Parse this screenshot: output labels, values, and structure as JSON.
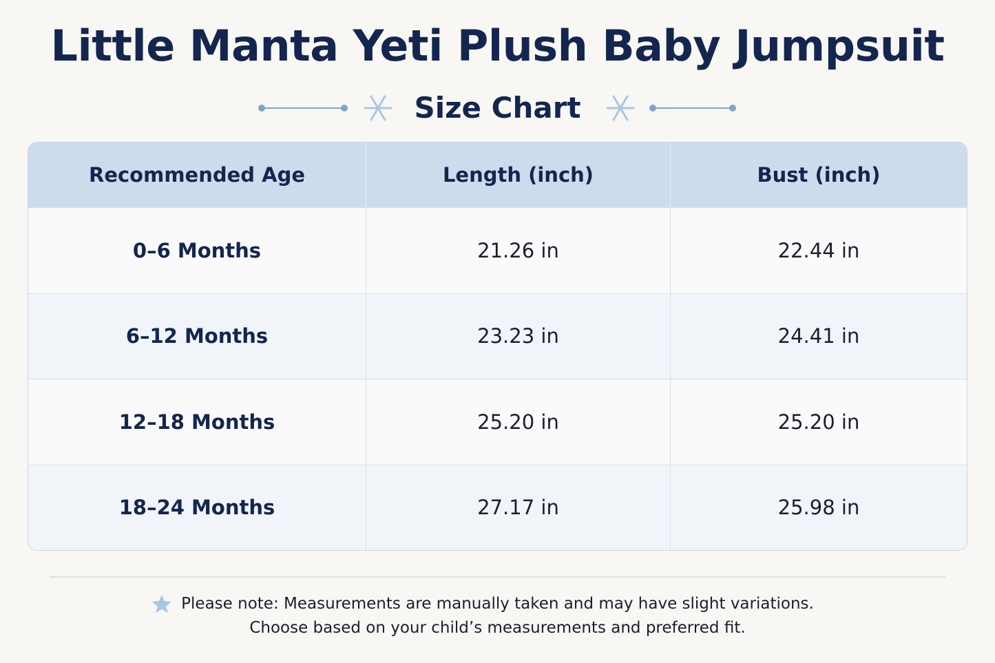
{
  "header": {
    "title": "Little Manta Yeti Plush Baby Jumpsuit",
    "subtitle": "Size Chart"
  },
  "table": {
    "columns": [
      "Recommended Age",
      "Length (inch)",
      "Bust (inch)"
    ],
    "rows": [
      [
        "0–6 Months",
        "21.26 in",
        "22.44 in"
      ],
      [
        "6–12 Months",
        "23.23 in",
        "24.41 in"
      ],
      [
        "12–18 Months",
        "25.20 in",
        "25.20 in"
      ],
      [
        "18–24 Months",
        "27.17 in",
        "25.98 in"
      ]
    ]
  },
  "note": {
    "lines": [
      "Please note: Measurements are manually taken and may have slight variations.",
      "Choose based on your child’s measurements and preferred fit."
    ]
  }
}
